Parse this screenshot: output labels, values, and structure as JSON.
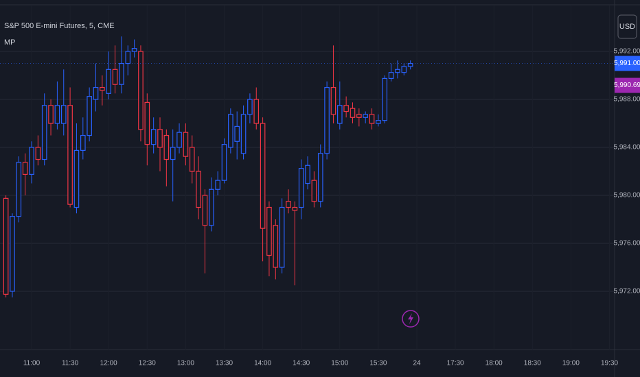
{
  "chart_data": {
    "type": "candlestick",
    "title": "S&P 500 E-mini Futures, 5, CME",
    "currency": "USD",
    "x": [
      "10:40",
      "10:45",
      "10:50",
      "10:55",
      "11:00",
      "11:05",
      "11:10",
      "11:15",
      "11:20",
      "11:25",
      "11:30",
      "11:35",
      "11:40",
      "11:45",
      "11:50",
      "11:55",
      "12:00",
      "12:05",
      "12:10",
      "12:15",
      "12:20",
      "12:25",
      "12:30",
      "12:35",
      "12:40",
      "12:45",
      "12:50",
      "12:55",
      "13:00",
      "13:05",
      "13:10",
      "13:15",
      "13:20",
      "13:25",
      "13:30",
      "13:35",
      "13:40",
      "13:45",
      "13:50",
      "13:55",
      "14:00",
      "14:05",
      "14:10",
      "14:15",
      "14:20",
      "14:25",
      "14:30",
      "14:35",
      "14:40",
      "14:45",
      "14:50",
      "14:55",
      "15:00",
      "15:05",
      "15:10",
      "15:15",
      "15:20",
      "15:25",
      "15:30",
      "15:35",
      "15:40",
      "15:45",
      "15:50",
      "15:55"
    ],
    "open": [
      5979.75,
      5972,
      5978.25,
      5982.75,
      5981.75,
      5984,
      5983,
      5987.5,
      5986,
      5986,
      5987.5,
      5979,
      5983.75,
      5985,
      5988,
      5989,
      5988.5,
      5990.5,
      5989.25,
      5991,
      5992,
      5992,
      5987.75,
      5984.25,
      5985.5,
      5985,
      5983,
      5984,
      5985.25,
      5984,
      5982,
      5980,
      5977.5,
      5980.5,
      5981.25,
      5984,
      5984.5,
      5983.5,
      5986.75,
      5988,
      5986,
      5979,
      5977.5,
      5974,
      5979.5,
      5979,
      5979,
      5981,
      5981.25,
      5979.5,
      5983.5,
      5989,
      5986,
      5987.5,
      5987.25,
      5986.75,
      5986.5,
      5986.75,
      5986,
      5986.25,
      5989.75,
      5990.25,
      5990.25,
      5990.75
    ],
    "high": [
      5980,
      5978.5,
      5983.25,
      5983.5,
      5984.5,
      5985,
      5988.5,
      5988,
      5989.5,
      5990.5,
      5989,
      5986,
      5986.5,
      5989,
      5991,
      5990,
      5992,
      5992.5,
      5993.25,
      5992.5,
      5993,
      5992.5,
      5988.5,
      5986.5,
      5986.5,
      5985.5,
      5985.5,
      5986,
      5986,
      5985,
      5983.25,
      5980.5,
      5981.5,
      5982,
      5984.75,
      5987.25,
      5987,
      5987.5,
      5988.5,
      5989,
      5986.5,
      5979.5,
      5978,
      5979.75,
      5980.5,
      5979.5,
      5983,
      5983.25,
      5982,
      5984.25,
      5989.5,
      5992.5,
      5989.5,
      5988.25,
      5987.75,
      5987.25,
      5987,
      5987.25,
      5986.75,
      5990,
      5991,
      5991.25,
      5991,
      5991.25
    ],
    "low": [
      5971.5,
      5971.5,
      5977.75,
      5980,
      5981,
      5982.5,
      5982.5,
      5985,
      5985.5,
      5985,
      5979,
      5978.5,
      5983,
      5984.5,
      5987,
      5987.5,
      5988,
      5988.5,
      5988.5,
      5990,
      5991.5,
      5984.5,
      5982.5,
      5983.5,
      5982,
      5980.75,
      5979.5,
      5983.5,
      5982.5,
      5981,
      5978,
      5973.5,
      5977,
      5980,
      5981,
      5983.5,
      5983,
      5983,
      5986,
      5985.5,
      5974.5,
      5973.25,
      5973,
      5973.5,
      5978.5,
      5972.5,
      5978,
      5980.5,
      5979,
      5979,
      5983,
      5986,
      5985.5,
      5986.5,
      5986,
      5985.75,
      5986,
      5985.5,
      5985.75,
      5986,
      5989.5,
      5989.75,
      5990,
      5990.5
    ],
    "close": [
      5971.75,
      5978.25,
      5982.75,
      5981.75,
      5984,
      5983,
      5987.5,
      5986,
      5987.5,
      5987.5,
      5979.25,
      5983.75,
      5985,
      5988.25,
      5989,
      5988.75,
      5990.5,
      5989.25,
      5991,
      5992,
      5992.25,
      5985.5,
      5984.25,
      5985.5,
      5984,
      5983,
      5984,
      5985.25,
      5983.25,
      5982,
      5979,
      5977.5,
      5980.5,
      5981.25,
      5984.25,
      5986.75,
      5985.75,
      5986.75,
      5988,
      5986,
      5977.25,
      5975,
      5974,
      5979,
      5979,
      5978.75,
      5982.25,
      5982.5,
      5979.5,
      5983.5,
      5989,
      5986.75,
      5987.5,
      5987,
      5986.5,
      5986.5,
      5986.75,
      5986,
      5986.25,
      5989.75,
      5990.25,
      5990.5,
      5990.75,
      5991
    ],
    "up_color": "#2962ff",
    "down_color": "#f23645",
    "last_price": {
      "value": 5991,
      "label": "5,991.00",
      "color": "#2962ff"
    },
    "indicator": {
      "name": "MP",
      "value": 5990.69,
      "label": "5,990.69",
      "color": "#9c27b0"
    },
    "ylim": [
      5967.14,
      5996.29
    ],
    "yticks": [
      {
        "value": 5972,
        "label": "5,972.00"
      },
      {
        "value": 5976,
        "label": "5,976.00"
      },
      {
        "value": 5980,
        "label": "5,980.00"
      },
      {
        "value": 5984,
        "label": "5,984.00"
      },
      {
        "value": 5988,
        "label": "5,988.00"
      },
      {
        "value": 5992,
        "label": "5,992.00"
      }
    ],
    "xticks": [
      "11:00",
      "11:30",
      "12:00",
      "12:30",
      "13:00",
      "13:30",
      "14:00",
      "14:30",
      "15:00",
      "15:30",
      "24",
      "17:30",
      "18:00",
      "18:30",
      "19:00",
      "19:30"
    ],
    "grid": true
  }
}
